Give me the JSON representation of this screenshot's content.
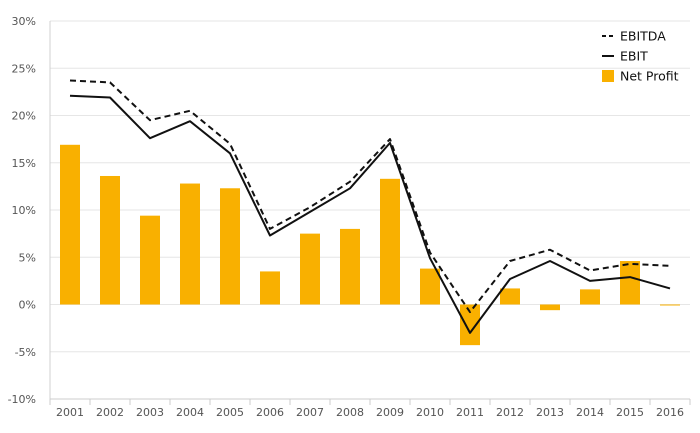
{
  "chart_data": {
    "type": "bar",
    "title": "",
    "xlabel": "",
    "ylabel": "",
    "categories": [
      "2001",
      "2002",
      "2003",
      "2004",
      "2005",
      "2006",
      "2007",
      "2008",
      "2009",
      "2010",
      "2011",
      "2012",
      "2013",
      "2014",
      "2015",
      "2016"
    ],
    "ylim": [
      -10,
      30
    ],
    "yticks": [
      -10,
      -5,
      0,
      5,
      10,
      15,
      20,
      25,
      30
    ],
    "ytick_labels": [
      "-10%",
      "-5%",
      "0%",
      "5%",
      "10%",
      "15%",
      "20%",
      "25%",
      "30%"
    ],
    "grid": true,
    "legend_position": "top-right",
    "series": [
      {
        "name": "EBITDA",
        "kind": "line",
        "style": "dashed",
        "color": "#111111",
        "values": [
          23.7,
          23.5,
          19.5,
          20.5,
          17.0,
          8.0,
          10.3,
          13.0,
          17.5,
          5.5,
          -0.8,
          4.6,
          5.8,
          3.6,
          4.3,
          4.1
        ]
      },
      {
        "name": "EBIT",
        "kind": "line",
        "style": "solid",
        "color": "#111111",
        "values": [
          22.1,
          21.9,
          17.6,
          19.4,
          16.0,
          7.3,
          9.8,
          12.3,
          17.1,
          4.9,
          -3.0,
          2.7,
          4.6,
          2.5,
          2.9,
          1.7
        ]
      },
      {
        "name": "Net Profit",
        "kind": "bar",
        "color": "#f9b000",
        "values": [
          16.9,
          13.6,
          9.4,
          12.8,
          12.3,
          3.5,
          7.5,
          8.0,
          13.3,
          3.8,
          -4.3,
          1.7,
          -0.6,
          1.6,
          4.6,
          -0.1
        ]
      }
    ]
  }
}
